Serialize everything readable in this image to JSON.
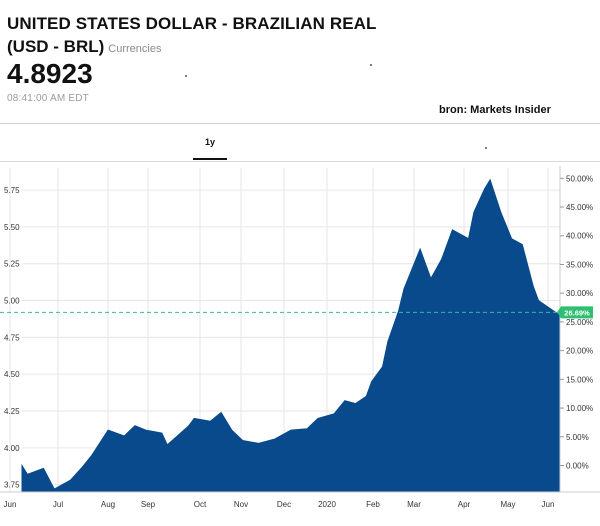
{
  "header": {
    "title_line1": "UNITED STATES DOLLAR - BRAZILIAN REAL",
    "title_line2": "(USD - BRL)",
    "asset_type": "Currencies",
    "price": "4.8923",
    "time": "08:41:00 AM EDT",
    "source": "bron: Markets Insider"
  },
  "tabs": [
    {
      "label": "1y",
      "active": true
    }
  ],
  "colors": {
    "area_fill": "#084a8b",
    "marker_bg": "#2fbf71",
    "ref_line": "#39b6a6",
    "grid": "#e6e6e6"
  },
  "chart_data": {
    "type": "area",
    "x_tick_labels": [
      "Jun",
      "Jul",
      "Aug",
      "Sep",
      "Oct",
      "Nov",
      "Dec",
      "2020",
      "Feb",
      "Mar",
      "Apr",
      "May",
      "Jun"
    ],
    "left_axis": {
      "ticks": [
        "3.75",
        "4.00",
        "4.25",
        "4.50",
        "4.75",
        "5.00",
        "5.25",
        "5.50",
        "5.75"
      ],
      "ylim": [
        3.7,
        5.9
      ]
    },
    "right_axis": {
      "ticks": [
        "0.00%",
        "5.00%",
        "10.00%",
        "15.00%",
        "20.00%",
        "25.00%",
        "30.00%",
        "35.00%",
        "40.00%",
        "45.00%",
        "50.00%"
      ]
    },
    "reference_value": 4.92,
    "current_change_label": "26.69%",
    "grid": true,
    "series": [
      {
        "t": [
          0.0,
          0.01,
          0.04,
          0.06,
          0.09,
          0.11,
          0.13,
          0.16,
          0.19,
          0.21,
          0.23,
          0.26,
          0.27,
          0.31,
          0.32,
          0.35,
          0.37,
          0.39,
          0.41,
          0.44,
          0.47,
          0.49,
          0.5,
          0.53,
          0.55,
          0.58,
          0.6,
          0.62,
          0.64,
          0.65,
          0.67,
          0.68,
          0.7,
          0.71,
          0.74,
          0.76,
          0.78,
          0.8,
          0.83,
          0.84,
          0.86,
          0.87,
          0.89,
          0.91,
          0.93,
          0.95,
          0.96,
          0.98,
          1.0
        ],
        "y": [
          3.88,
          3.82,
          3.86,
          3.72,
          3.78,
          3.86,
          3.95,
          4.12,
          4.08,
          4.15,
          4.12,
          4.1,
          4.02,
          4.15,
          4.2,
          4.18,
          4.24,
          4.12,
          4.05,
          4.03,
          4.06,
          4.1,
          4.12,
          4.13,
          4.2,
          4.23,
          4.32,
          4.3,
          4.35,
          4.45,
          4.55,
          4.72,
          4.93,
          5.08,
          5.35,
          5.15,
          5.28,
          5.48,
          5.42,
          5.6,
          5.76,
          5.82,
          5.6,
          5.42,
          5.38,
          5.1,
          5.0,
          4.95,
          4.9
        ]
      }
    ]
  }
}
